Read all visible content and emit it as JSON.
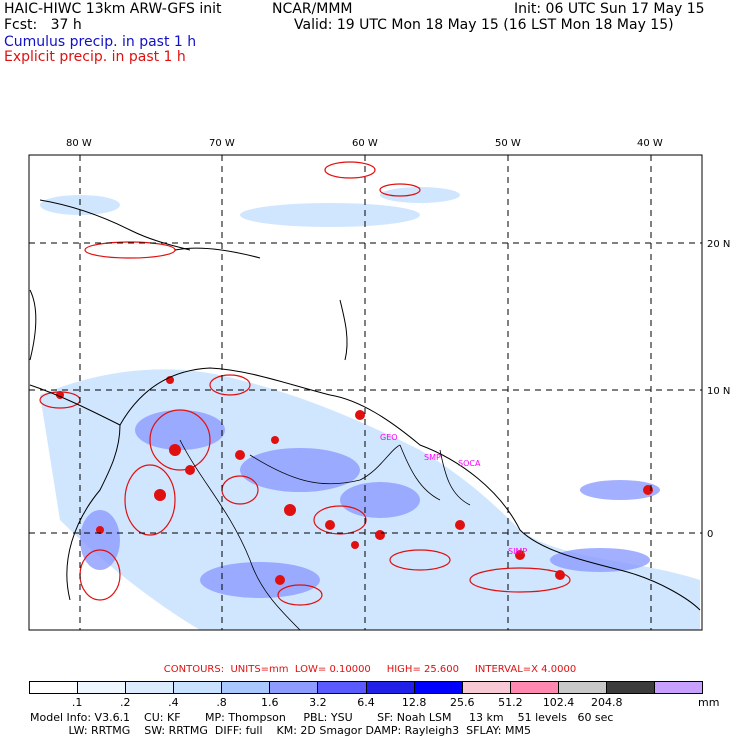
{
  "header": {
    "model": "HAIC-HIWC 13km ARW-GFS init",
    "org": "NCAR/MMM",
    "init": "Init: 06 UTC Sun 17 May 15",
    "fcst": "Fcst:   37 h",
    "valid": "Valid: 19 UTC Mon 18 May 15 (16 LST Mon 18 May 15)",
    "cumulus": "Cumulus precip. in past 1 h",
    "explicit": "Explicit precip. in past 1 h"
  },
  "map": {
    "lon_labels": [
      "80 W",
      "70 W",
      "60 W",
      "50 W",
      "40 W"
    ],
    "lat_labels": [
      "20 N",
      "10 N",
      "0"
    ],
    "station_labels": [
      "GEO",
      "SMP",
      "SOCA",
      "SIMP"
    ]
  },
  "contours": {
    "label": "CONTOURS:",
    "units": "UNITS=mm",
    "low": "LOW= 0.10000",
    "high": "HIGH= 25.600",
    "interval": "INTERVAL=X 4.0000"
  },
  "scale": {
    "labels": [
      ".1",
      ".2",
      ".4",
      ".8",
      "1.6",
      "3.2",
      "6.4",
      "12.8",
      "25.6",
      "51.2",
      "102.4",
      "204.8"
    ],
    "unit": "mm",
    "colors": [
      "#ffffff",
      "#eef6ff",
      "#dcecff",
      "#c8e2ff",
      "#a8c8ff",
      "#8c9cff",
      "#5a5aff",
      "#2020e6",
      "#0000ff",
      "#f8c8d4",
      "#ff88b0",
      "#c8c8c8",
      "#3c3c3c",
      "#c8a0ff"
    ]
  },
  "info": {
    "line1": "Model Info: V3.6.1    CU: KF       MP: Thompson     PBL: YSU       SF: Noah LSM     13 km    51 levels   60 sec",
    "line2": "           LW: RRTMG    SW: RRTMG  DIFF: full    KM: 2D Smagor DAMP: Rayleigh3  SFLAY: MM5"
  }
}
